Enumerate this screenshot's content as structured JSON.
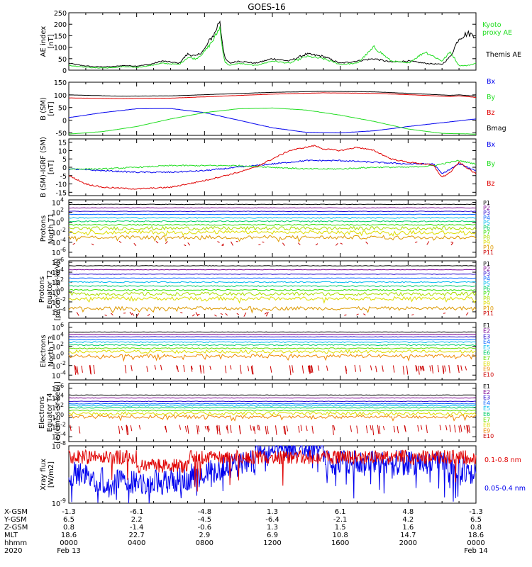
{
  "title": "GOES-16",
  "colors": {
    "black": "#000000",
    "red": "#e00000",
    "green": "#22dd22",
    "blue": "#0000ee",
    "P": [
      "#000000",
      "#7a0090",
      "#2200cc",
      "#0060ff",
      "#00bbee",
      "#00cc66",
      "#33dd00",
      "#aadd00",
      "#dddd00",
      "#dd9900",
      "#cc0000"
    ],
    "E": [
      "#000000",
      "#7a0090",
      "#2200cc",
      "#0060ff",
      "#00bbee",
      "#00cc66",
      "#66dd00",
      "#dddd00",
      "#ee8800",
      "#cc0000"
    ]
  },
  "chart_data": [
    {
      "type": "line",
      "panel": "ae",
      "ylabel": [
        "AE index",
        "[nT]"
      ],
      "yticks": [
        "250",
        "200",
        "150",
        "100",
        "50",
        "0"
      ],
      "ylim": [
        0,
        250
      ],
      "legend": [
        {
          "label": "Kyoto",
          "color": "#22dd22"
        },
        {
          "label": "proxy AE",
          "color": "#22dd22"
        },
        {
          "label": "Themis AE",
          "color": "#000000"
        }
      ],
      "series": [
        {
          "name": "Themis AE",
          "color": "#000000",
          "x": [
            0,
            0.8,
            1.5,
            2.5,
            3.2,
            4,
            4.8,
            5.5,
            6.5,
            7,
            7.5,
            8,
            8.3,
            8.6,
            8.9,
            9,
            9.2,
            9.5,
            10,
            11,
            12,
            13,
            14,
            15,
            16,
            17,
            18,
            19,
            20,
            21,
            22,
            22.5,
            23,
            23.5,
            24
          ],
          "values": [
            30,
            20,
            15,
            15,
            20,
            18,
            25,
            40,
            30,
            70,
            60,
            90,
            130,
            160,
            220,
            150,
            50,
            30,
            40,
            30,
            50,
            40,
            70,
            60,
            30,
            40,
            50,
            35,
            40,
            30,
            25,
            60,
            140,
            160,
            150
          ]
        },
        {
          "name": "Kyoto proxy AE",
          "color": "#22dd22",
          "x": [
            0,
            0.8,
            1.5,
            2.5,
            3.2,
            4,
            4.8,
            5.5,
            6.5,
            7,
            7.5,
            8,
            8.3,
            8.6,
            8.9,
            9,
            9.2,
            9.5,
            10,
            11,
            12,
            13,
            14,
            15,
            16,
            17,
            18,
            19,
            20,
            21,
            22,
            22.5,
            23,
            23.5,
            24
          ],
          "values": [
            20,
            15,
            10,
            10,
            15,
            12,
            20,
            30,
            25,
            55,
            50,
            80,
            110,
            140,
            190,
            120,
            35,
            20,
            30,
            20,
            40,
            30,
            60,
            50,
            25,
            30,
            100,
            40,
            30,
            80,
            40,
            80,
            20,
            20,
            30
          ]
        }
      ]
    },
    {
      "type": "line",
      "panel": "bsm",
      "ylabel": [
        "B (SM)",
        "[nT]"
      ],
      "yticks": [
        "150",
        "100",
        "50",
        "0",
        "-50"
      ],
      "ylim": [
        -60,
        150
      ],
      "legend": [
        {
          "label": "Bx",
          "color": "#0000ee"
        },
        {
          "label": "By",
          "color": "#22dd22"
        },
        {
          "label": "Bz",
          "color": "#e00000"
        },
        {
          "label": "Bmag",
          "color": "#000000"
        }
      ],
      "series": [
        {
          "name": "Bmag",
          "color": "#000000",
          "x": [
            0,
            3,
            6,
            9,
            12,
            15,
            18,
            21,
            22.5,
            23,
            24
          ],
          "values": [
            100,
            95,
            96,
            103,
            110,
            114,
            112,
            103,
            98,
            100,
            95
          ]
        },
        {
          "name": "Bz",
          "color": "#e00000",
          "x": [
            0,
            3,
            6,
            9,
            12,
            15,
            18,
            21,
            22.5,
            23,
            24
          ],
          "values": [
            88,
            85,
            87,
            95,
            103,
            108,
            106,
            98,
            93,
            96,
            90
          ]
        },
        {
          "name": "Bx",
          "color": "#0000ee",
          "x": [
            0,
            2,
            4,
            6,
            8,
            10,
            12,
            14,
            16,
            18,
            20,
            22,
            24
          ],
          "values": [
            10,
            30,
            45,
            46,
            30,
            0,
            -30,
            -48,
            -50,
            -42,
            -25,
            -10,
            5
          ]
        },
        {
          "name": "By",
          "color": "#22dd22",
          "x": [
            0,
            2,
            4,
            6,
            8,
            10,
            12,
            14,
            16,
            18,
            20,
            22,
            24
          ],
          "values": [
            -55,
            -45,
            -25,
            5,
            30,
            45,
            48,
            40,
            20,
            -5,
            -35,
            -52,
            -55
          ]
        }
      ]
    },
    {
      "type": "line",
      "panel": "bdiff",
      "ylabel": [
        "B (SM)-IGRF (SM)",
        "[nT]"
      ],
      "yticks": [
        "15",
        "10",
        "5",
        "0",
        "-5",
        "-10",
        "-15"
      ],
      "ylim": [
        -17,
        17
      ],
      "legend": [
        {
          "label": "Bx",
          "color": "#0000ee"
        },
        {
          "label": "By",
          "color": "#22dd22"
        },
        {
          "label": "Bz",
          "color": "#e00000"
        }
      ],
      "series": [
        {
          "name": "Bx",
          "color": "#0000ee",
          "x": [
            0,
            2,
            4,
            6,
            8,
            10,
            12,
            14,
            16,
            18,
            20,
            21.5,
            22,
            22.5,
            23,
            24
          ],
          "values": [
            -1,
            -2,
            -3,
            -3,
            -2,
            0,
            2,
            4,
            4,
            3,
            2,
            2,
            -4,
            -1,
            2,
            -2
          ]
        },
        {
          "name": "By",
          "color": "#22dd22",
          "x": [
            0,
            2,
            4,
            6,
            8,
            10,
            12,
            14,
            16,
            18,
            20,
            21.5,
            22,
            22.5,
            23,
            24
          ],
          "values": [
            -1,
            -1,
            0,
            1,
            1,
            1,
            0,
            -1,
            -1,
            0,
            0,
            1,
            2,
            3,
            4,
            2
          ]
        },
        {
          "name": "Bz",
          "color": "#e00000",
          "x": [
            0,
            1,
            2,
            4,
            6,
            8,
            10,
            11,
            12,
            13,
            14,
            14.5,
            15,
            16,
            17,
            18,
            19,
            20,
            21,
            21.5,
            22,
            22.5,
            23,
            24
          ],
          "values": [
            -5,
            -10,
            -12,
            -13,
            -12,
            -8,
            -3,
            0,
            5,
            10,
            12,
            13,
            11,
            10,
            12,
            10,
            5,
            3,
            2,
            1,
            -6,
            -3,
            3,
            -4
          ]
        }
      ]
    },
    {
      "type": "line",
      "panel": "pnorth",
      "log": true,
      "ylabel": [
        "Protons",
        "North T1"
      ],
      "yticks": [
        "10",
        "10",
        "10",
        "10",
        "10",
        "10"
      ],
      "yexp": [
        "4",
        "2",
        "0",
        "-2",
        "-4",
        "-6"
      ],
      "ylim": [
        -7,
        4.5
      ],
      "legend": [
        "P1",
        "P2",
        "P3",
        "P4",
        "P5",
        "P6",
        "P7",
        "P8",
        "P9",
        "P10",
        "P11"
      ],
      "levels": [
        3.6,
        2.9,
        2.2,
        1.6,
        0.9,
        0.2,
        -0.5,
        -1.2,
        -2.0,
        -3.0,
        -4.2
      ]
    },
    {
      "type": "line",
      "panel": "peq",
      "log": true,
      "ylabel": [
        "Protons",
        "Equator T2",
        "[p/(cm²-s-sr-keV)]"
      ],
      "yticks": [
        "10",
        "10",
        "10",
        "10",
        "10",
        "10"
      ],
      "yexp": [
        "6",
        "4",
        "2",
        "0",
        "-2",
        "-4"
      ],
      "ylim": [
        -5.3,
        6.3
      ],
      "legend": [
        "P1",
        "P2",
        "P3",
        "P4",
        "P5",
        "P6",
        "P7",
        "P8",
        "P9",
        "P10",
        "P11"
      ],
      "levels": [
        5.3,
        4.5,
        3.6,
        2.8,
        2.0,
        1.2,
        0.4,
        -0.4,
        -1.3,
        -3.3,
        -4.5
      ]
    },
    {
      "type": "line",
      "panel": "enorth",
      "log": true,
      "ylabel": [
        "Electrons",
        "North T3"
      ],
      "yticks": [
        "10",
        "10",
        "10",
        "10",
        "10",
        "10"
      ],
      "yexp": [
        "6",
        "4",
        "2",
        "0",
        "-2",
        "-4"
      ],
      "ylim": [
        -5,
        7
      ],
      "legend": [
        "E1",
        "E2",
        "E3",
        "E4",
        "E5",
        "E6",
        "E7",
        "E8",
        "E9",
        "E10"
      ],
      "levels": [
        5.0,
        4.5,
        4.0,
        3.4,
        2.9,
        2.3,
        1.6,
        0.9,
        0.0,
        -2.3
      ]
    },
    {
      "type": "line",
      "panel": "eeq",
      "log": true,
      "ylabel": [
        "Electrons",
        "Equator T4",
        "[e/(cm²-s-sr-keV)]"
      ],
      "yticks": [
        "10",
        "10",
        "10",
        "10",
        "10",
        "10"
      ],
      "yexp": [
        "6",
        "4",
        "2",
        "0",
        "-2",
        "-4"
      ],
      "ylim": [
        -5,
        7
      ],
      "legend": [
        "E1",
        "E2",
        "E3",
        "E4",
        "E5",
        "E6",
        "E7",
        "E8",
        "E9",
        "E10"
      ],
      "levels": [
        4.6,
        4.0,
        3.3,
        2.8,
        2.4,
        2.0,
        1.4,
        0.8,
        0.1,
        -2.0
      ]
    },
    {
      "type": "line",
      "panel": "xray",
      "log": true,
      "ylabel": [
        "Xray flux",
        "[W/m2]"
      ],
      "yticks": [
        "10",
        "10"
      ],
      "yexp": [
        "-8",
        "-9"
      ],
      "ylim": [
        -9,
        -8
      ],
      "legend": [
        {
          "label": "0.1-0.8 nm",
          "color": "#e00000"
        },
        {
          "label": "0.05-0.4 nm",
          "color": "#0000ee"
        }
      ]
    }
  ],
  "xaxis": {
    "xlim": [
      0,
      24
    ],
    "ticks": [
      0,
      4,
      8,
      12,
      16,
      20,
      24
    ],
    "rows": [
      {
        "label": "X-GSM",
        "values": [
          "-1.3",
          "-6.1",
          "-4.8",
          "1.3",
          "6.1",
          "4.8",
          "-1.3"
        ]
      },
      {
        "label": "Y-GSM",
        "values": [
          "6.5",
          "2.2",
          "-4.5",
          "-6.4",
          "-2.1",
          "4.2",
          "6.5"
        ]
      },
      {
        "label": "Z-GSM",
        "values": [
          "0.8",
          "-1.4",
          "-0.6",
          "1.3",
          "1.5",
          "1.6",
          "0.8"
        ]
      },
      {
        "label": "MLT",
        "values": [
          "18.6",
          "22.7",
          "2.9",
          "6.9",
          "10.8",
          "14.7",
          "18.6"
        ]
      },
      {
        "label": "hhmm",
        "values": [
          "0000",
          "0400",
          "0800",
          "1200",
          "1600",
          "2000",
          "0000"
        ]
      }
    ],
    "year": "2020",
    "start_date": "Feb 13",
    "end_date": "Feb 14"
  }
}
